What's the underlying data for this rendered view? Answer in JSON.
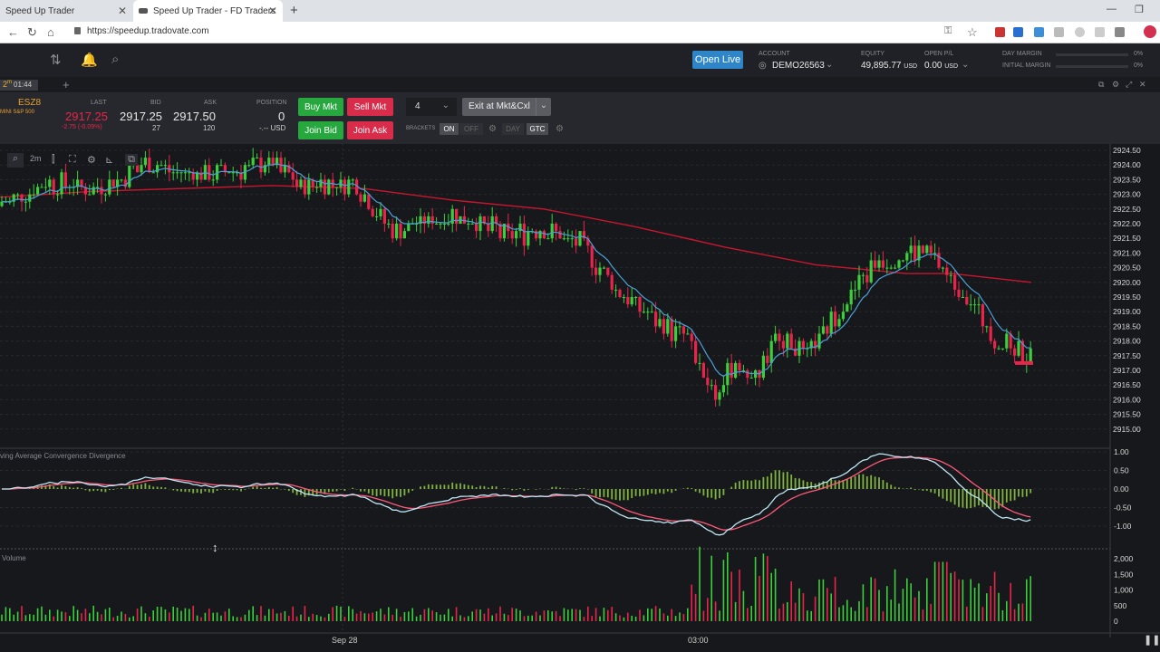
{
  "browser": {
    "tabs": [
      {
        "title": "Speed Up Trader",
        "active": false
      },
      {
        "title": "Speed Up Trader - FD Traders",
        "active": true
      }
    ],
    "url": "https://speedup.tradovate.com"
  },
  "header": {
    "open_live_label": "Open Live",
    "account_label": "ACCOUNT",
    "account_value": "DEMO26563",
    "equity_label": "EQUITY",
    "equity_value": "49,895.77",
    "equity_ccy": "USD",
    "openpl_label": "OPEN P/L",
    "openpl_value": "0.00",
    "openpl_ccy": "USD",
    "day_margin_label": "DAY MARGIN",
    "day_margin_value": "0%",
    "initial_margin_label": "INITIAL MARGIN",
    "initial_margin_value": "0%"
  },
  "module": {
    "interval": "2",
    "interval_unit": "m",
    "timer": "01:44"
  },
  "quote": {
    "symbol": "ESZ8",
    "symbol_desc": "MINI S&P 500",
    "last_label": "LAST",
    "last_value": "2917.25",
    "change": "-2.75 (-0.09%)",
    "bid_label": "BID",
    "bid_value": "2917.25",
    "bid_size": "27",
    "ask_label": "ASK",
    "ask_value": "2917.50",
    "ask_size": "120",
    "position_label": "POSITION",
    "position_value": "0",
    "position_pnl": "-.-- USD"
  },
  "order": {
    "buy_mkt": "Buy Mkt",
    "sell_mkt": "Sell Mkt",
    "join_bid": "Join Bid",
    "join_ask": "Join Ask",
    "quantity": "4",
    "exit_label": "Exit at Mkt&Cxl",
    "brackets_label": "BRACKETS",
    "on_label": "ON",
    "off_label": "OFF",
    "day_label": "DAY",
    "gtc_label": "GTC"
  },
  "chart": {
    "price_ticks": [
      "2924.50",
      "2924.00",
      "2923.50",
      "2923.00",
      "2922.50",
      "2922.00",
      "2921.50",
      "2921.00",
      "2920.50",
      "2920.00",
      "2919.50",
      "2919.00",
      "2918.50",
      "2918.00",
      "2917.50",
      "2917.00",
      "2916.50",
      "2916.00",
      "2915.50",
      "2915.00"
    ],
    "macd_title": "ving Average Convergence Divergence",
    "macd_ticks": [
      "1.00",
      "0.50",
      "0.00",
      "-0.50",
      "-1.00"
    ],
    "volume_title": "Volume",
    "volume_ticks": [
      "2,000",
      "1,500",
      "1,000",
      "500",
      "0"
    ],
    "time_labels": [
      "Sep 28",
      "03:00"
    ],
    "chart_interval_label": "2m",
    "colors": {
      "up": "#3ccf3c",
      "down": "#e8244a",
      "ema_slow": "#c8162f",
      "ema_fast": "#4aa0d8",
      "macd": "#bfe8f5",
      "signal": "#ff5a7a",
      "hist": "#7fb33f"
    }
  }
}
